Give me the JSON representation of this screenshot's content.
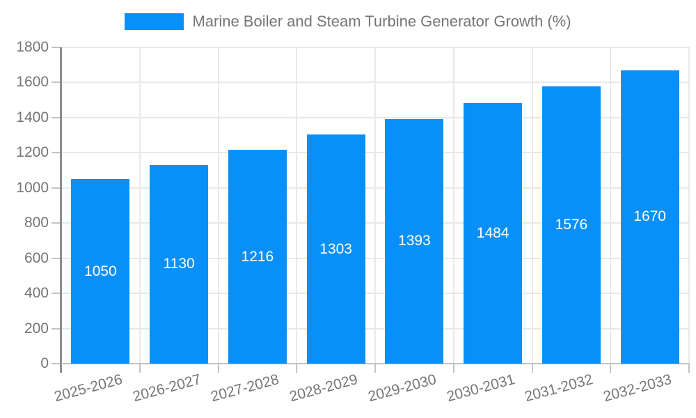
{
  "chart_data": {
    "type": "bar",
    "title": "Marine Boiler and Steam Turbine Generator Growth (%)",
    "legend_entries": [
      "Marine Boiler and Steam Turbine Generator Growth (%)"
    ],
    "legend_position": "top",
    "categories": [
      "2025-2026",
      "2026-2027",
      "2027-2028",
      "2028-2029",
      "2029-2030",
      "2030-2031",
      "2031-2032",
      "2032-2033"
    ],
    "values": [
      1050,
      1130,
      1216,
      1303,
      1393,
      1484,
      1576,
      1670
    ],
    "value_labels": [
      "1050",
      "1130",
      "1216",
      "1303",
      "1393",
      "1484",
      "1576",
      "1670"
    ],
    "xlabel": "",
    "ylabel": "",
    "ylim": [
      0,
      1800
    ],
    "ytick_step": 200,
    "ytick_labels": [
      "0",
      "200",
      "400",
      "600",
      "800",
      "1000",
      "1200",
      "1400",
      "1600",
      "1800"
    ],
    "grid": true,
    "colors": {
      "bar": "#0890f8",
      "value_text": "#ffffff",
      "axis_text": "#757575",
      "gridline": "#e8e8e8",
      "y_axis_line": "#8c8c8c",
      "x_axis_line": "#c2c2c2"
    }
  }
}
